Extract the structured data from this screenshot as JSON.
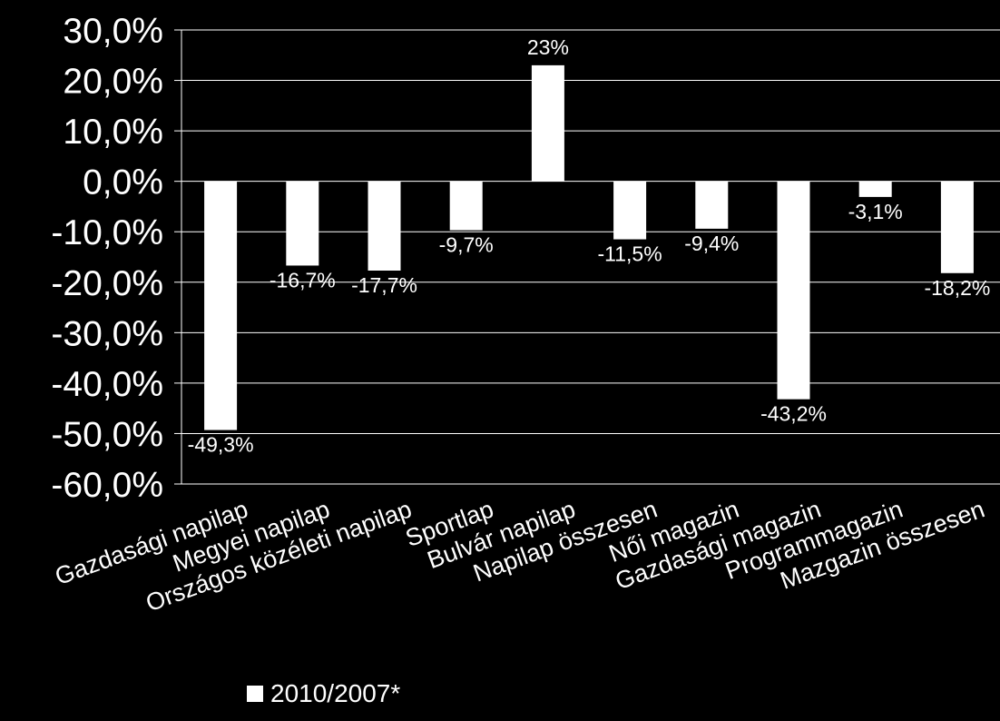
{
  "chart_data": {
    "type": "bar",
    "categories": [
      "Gazdasági napilap",
      "Megyei napilap",
      "Országos közéleti napilap",
      "Sportlap",
      "Bulvár napilap",
      "Napilap összesen",
      "Női magazin",
      "Gazdasági magazin",
      "Programmagazin",
      "Mazgazin összesen"
    ],
    "series": [
      {
        "name": "2010/2007*",
        "values": [
          -49.3,
          -16.7,
          -17.7,
          -9.7,
          23,
          -11.5,
          -9.4,
          -43.2,
          -3.1,
          -18.2
        ],
        "labels": [
          "-49,3%",
          "-16,7%",
          "-17,7%",
          "-9,7%",
          "23%",
          "-11,5%",
          "-9,4%",
          "-43,2%",
          "-3,1%",
          "-18,2%"
        ]
      }
    ],
    "yticks": [
      30,
      20,
      10,
      0,
      -10,
      -20,
      -30,
      -40,
      -50,
      -60
    ],
    "ytick_labels": [
      "30,0%",
      "20,0%",
      "10,0%",
      "0,0%",
      "-10,0%",
      "-20,0%",
      "-30,0%",
      "-40,0%",
      "-50,0%",
      "-60,0%"
    ],
    "ylim": [
      -60,
      30
    ],
    "grid": true,
    "legend_position": "bottom-left",
    "colors": {
      "background": "#000000",
      "bar": "#ffffff",
      "grid": "#ffffff",
      "text": "#ffffff"
    }
  }
}
